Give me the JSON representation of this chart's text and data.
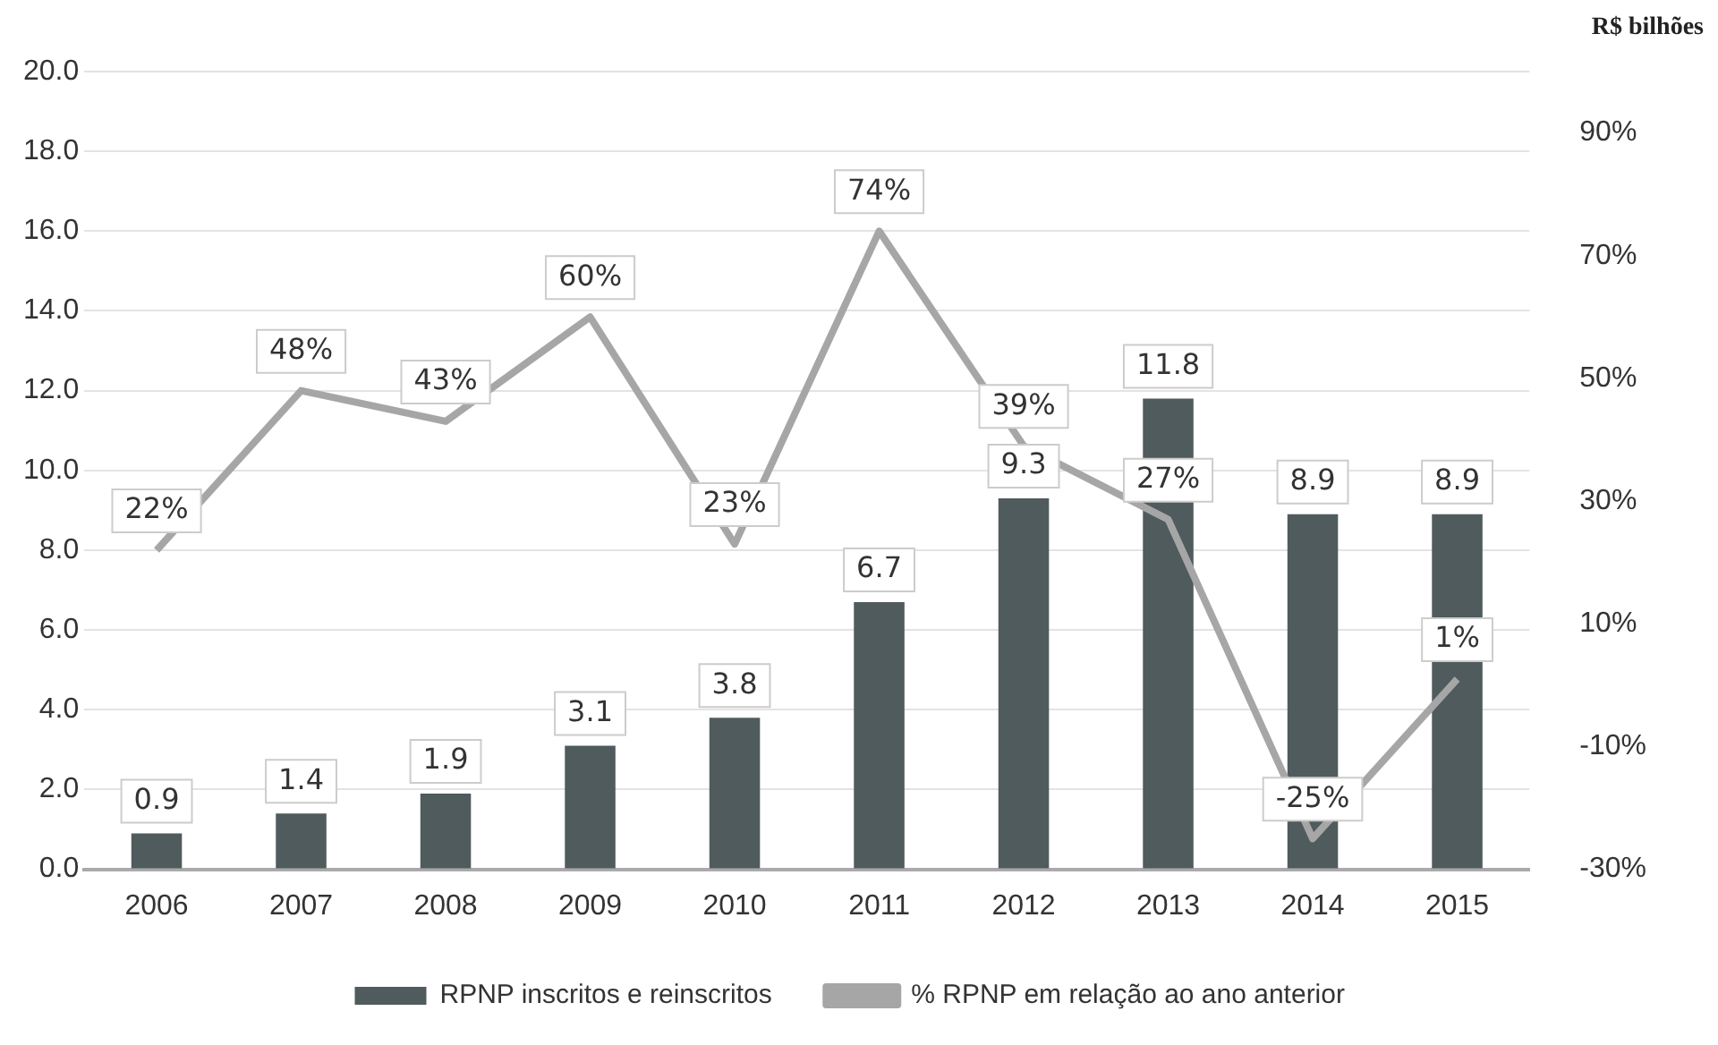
{
  "chart_data": {
    "type": "bar",
    "categories": [
      "2006",
      "2007",
      "2008",
      "2009",
      "2010",
      "2011",
      "2012",
      "2013",
      "2014",
      "2015"
    ],
    "series": [
      {
        "name": "RPNP inscritos e reinscritos",
        "color": "#4f5b5d",
        "values": [
          0.9,
          1.4,
          1.9,
          3.1,
          3.8,
          6.7,
          9.3,
          11.8,
          8.9,
          8.9
        ],
        "value_labels": [
          "0.9",
          "1.4",
          "1.9",
          "3.1",
          "3.8",
          "6.7",
          "9.3",
          "11.8",
          "8.9",
          "8.9"
        ]
      },
      {
        "name": "% RPNP em relação ao ano anterior",
        "type": "line",
        "axis": "y2",
        "color": "#a6a6a6",
        "values": [
          22,
          48,
          43,
          60,
          23,
          74,
          39,
          27,
          -25,
          1
        ],
        "value_labels": [
          "22%",
          "48%",
          "43%",
          "60%",
          "23%",
          "74%",
          "39%",
          "27%",
          "-25%",
          "1%"
        ]
      }
    ],
    "ylim": [
      0,
      20
    ],
    "yticks": [
      {
        "value": 0,
        "label": "0.0"
      },
      {
        "value": 2,
        "label": "2.0"
      },
      {
        "value": 4,
        "label": "4.0"
      },
      {
        "value": 6,
        "label": "6.0"
      },
      {
        "value": 8,
        "label": "8.0"
      },
      {
        "value": 10,
        "label": "10.0"
      },
      {
        "value": 12,
        "label": "12.0"
      },
      {
        "value": 14,
        "label": "14.0"
      },
      {
        "value": 16,
        "label": "16.0"
      },
      {
        "value": 18,
        "label": "18.0"
      },
      {
        "value": 20,
        "label": "20.0"
      }
    ],
    "y2lim": [
      -30,
      100
    ],
    "y2ticks": [
      {
        "value": -30,
        "label": "-30%"
      },
      {
        "value": -10,
        "label": "-10%"
      },
      {
        "value": 10,
        "label": "10%"
      },
      {
        "value": 30,
        "label": "30%"
      },
      {
        "value": 50,
        "label": "50%"
      },
      {
        "value": 70,
        "label": "70%"
      },
      {
        "value": 90,
        "label": "90%"
      }
    ],
    "annotations": [
      "R$ bilhões"
    ],
    "grid": "y",
    "legend": "bottom",
    "marker": "none"
  }
}
